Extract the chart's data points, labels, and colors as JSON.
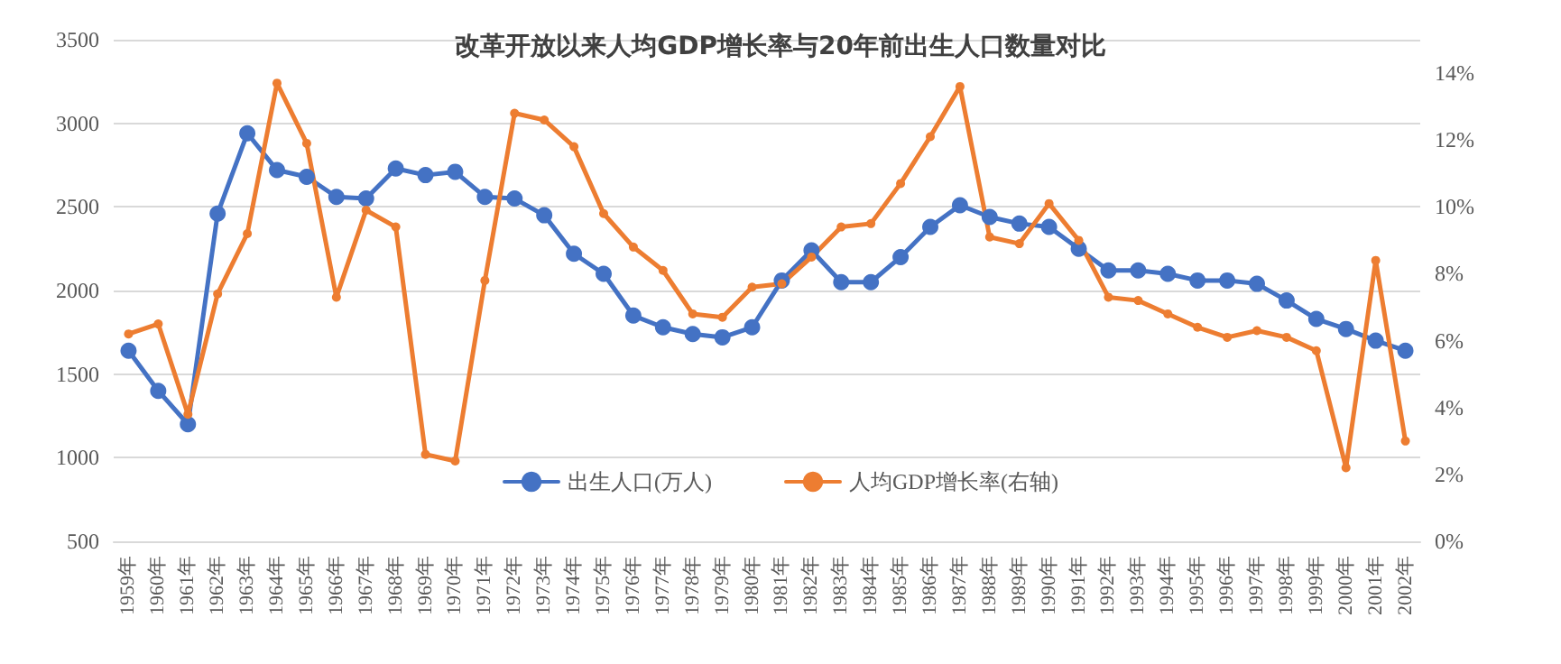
{
  "chart_data": {
    "type": "line",
    "title": "改革开放以来人均GDP增长率与20年前出生人口数量对比",
    "categories": [
      "1959年",
      "1960年",
      "1961年",
      "1962年",
      "1963年",
      "1964年",
      "1965年",
      "1966年",
      "1967年",
      "1968年",
      "1969年",
      "1970年",
      "1971年",
      "1972年",
      "1973年",
      "1974年",
      "1975年",
      "1976年",
      "1977年",
      "1978年",
      "1979年",
      "1980年",
      "1981年",
      "1982年",
      "1983年",
      "1984年",
      "1985年",
      "1986年",
      "1987年",
      "1988年",
      "1989年",
      "1990年",
      "1991年",
      "1992年",
      "1993年",
      "1994年",
      "1995年",
      "1996年",
      "1997年",
      "1998年",
      "1999年",
      "2000年",
      "2001年",
      "2002年"
    ],
    "series": [
      {
        "name": "出生人口(万人)",
        "color": "#4472c4",
        "values": [
          1640,
          1400,
          1200,
          2460,
          2940,
          2720,
          2680,
          2560,
          2550,
          2730,
          2690,
          2710,
          2560,
          2550,
          2450,
          2220,
          2100,
          1850,
          1780,
          1740,
          1720,
          1780,
          2060,
          2240,
          2050,
          2050,
          2200,
          2380,
          2510,
          2440,
          2400,
          2380,
          2250,
          2120,
          2120,
          2100,
          2060,
          2060,
          2040,
          1940,
          1830,
          1770,
          1700,
          1640
        ]
      },
      {
        "name": "人均GDP增长率(右轴)",
        "color": "#ed7d31",
        "axis": "y2",
        "values": [
          6.2,
          6.5,
          3.8,
          7.4,
          9.2,
          13.7,
          11.9,
          7.3,
          9.9,
          9.4,
          2.6,
          2.4,
          7.8,
          12.8,
          12.6,
          11.8,
          9.8,
          8.8,
          8.1,
          6.8,
          6.7,
          7.6,
          7.7,
          8.5,
          9.4,
          9.5,
          10.7,
          12.1,
          13.6,
          9.1,
          8.9,
          10.1,
          9.0,
          7.3,
          7.2,
          6.8,
          6.4,
          6.1,
          6.3,
          6.1,
          5.7,
          2.2,
          8.4,
          3.0
        ]
      }
    ],
    "ylim": [
      500,
      3500
    ],
    "yticks": [
      500,
      1000,
      1500,
      2000,
      2500,
      3000,
      3500
    ],
    "y2lim": [
      0,
      15
    ],
    "y2ticks": [
      {
        "value": 0,
        "label": "0%"
      },
      {
        "value": 2,
        "label": "2%"
      },
      {
        "value": 4,
        "label": "4%"
      },
      {
        "value": 6,
        "label": "6%"
      },
      {
        "value": 8,
        "label": "8%"
      },
      {
        "value": 10,
        "label": "10%"
      },
      {
        "value": 12,
        "label": "12%"
      },
      {
        "value": 14,
        "label": "14%"
      }
    ],
    "grid": "y",
    "legend": "bottom",
    "marker": "circle",
    "line_style": "solid"
  }
}
